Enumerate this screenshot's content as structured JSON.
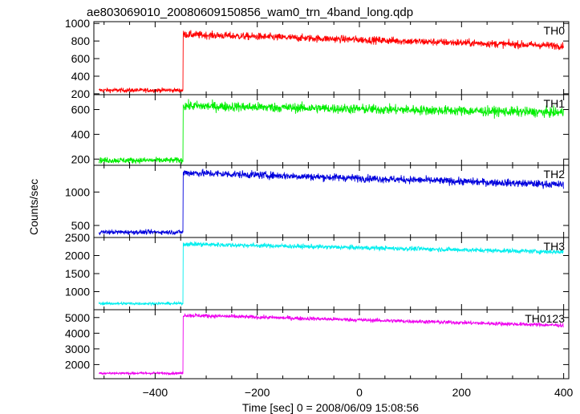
{
  "figure": {
    "title": "ae803069010_20080609150856_wam0_trn_4band_long.qdp",
    "xlabel": "Time [sec] 0 = 2008/06/09 15:08:56",
    "ylabel": "Counts/sec"
  },
  "chart_data": {
    "type": "line",
    "title": "ae803069010_20080609150856_wam0_trn_4band_long.qdp",
    "xlabel": "Time [sec] 0 = 2008/06/09 15:08:56",
    "ylabel": "Counts/sec",
    "xlim": [
      -520,
      410
    ],
    "x_ticks": [
      -400,
      -200,
      0,
      200,
      400
    ],
    "grid": false,
    "panels": [
      {
        "name": "TH0",
        "color": "#ff0000",
        "ylim": [
          190,
          1020
        ],
        "y_ticks": [
          200,
          400,
          600,
          800,
          1000
        ],
        "x_range": [
          -510,
          400
        ],
        "step_at": -345,
        "pre_level": 240,
        "post_start": 875,
        "post_end": 745,
        "noise": 30
      },
      {
        "name": "TH1",
        "color": "#00ee00",
        "ylim": [
          150,
          720
        ],
        "y_ticks": [
          200,
          400,
          600
        ],
        "x_range": [
          -510,
          400
        ],
        "step_at": -345,
        "pre_level": 190,
        "post_start": 630,
        "post_end": 575,
        "noise": 28
      },
      {
        "name": "TH2",
        "color": "#0000dd",
        "ylim": [
          320,
          1400
        ],
        "y_ticks": [
          500,
          1000
        ],
        "x_range": [
          -510,
          400
        ],
        "step_at": -345,
        "pre_level": 400,
        "post_start": 1290,
        "post_end": 1110,
        "noise": 40
      },
      {
        "name": "TH3",
        "color": "#00eeee",
        "ylim": [
          500,
          2500
        ],
        "y_ticks": [
          1000,
          1500,
          2000,
          2500
        ],
        "x_range": [
          -510,
          400
        ],
        "step_at": -345,
        "pre_level": 670,
        "post_start": 2320,
        "post_end": 2100,
        "noise": 45
      },
      {
        "name": "TH0123",
        "color": "#ee00ee",
        "ylim": [
          1100,
          5500
        ],
        "y_ticks": [
          2000,
          3000,
          4000,
          5000
        ],
        "x_range": [
          -510,
          400
        ],
        "step_at": -345,
        "pre_level": 1450,
        "post_start": 5150,
        "post_end": 4500,
        "noise": 90
      }
    ]
  }
}
